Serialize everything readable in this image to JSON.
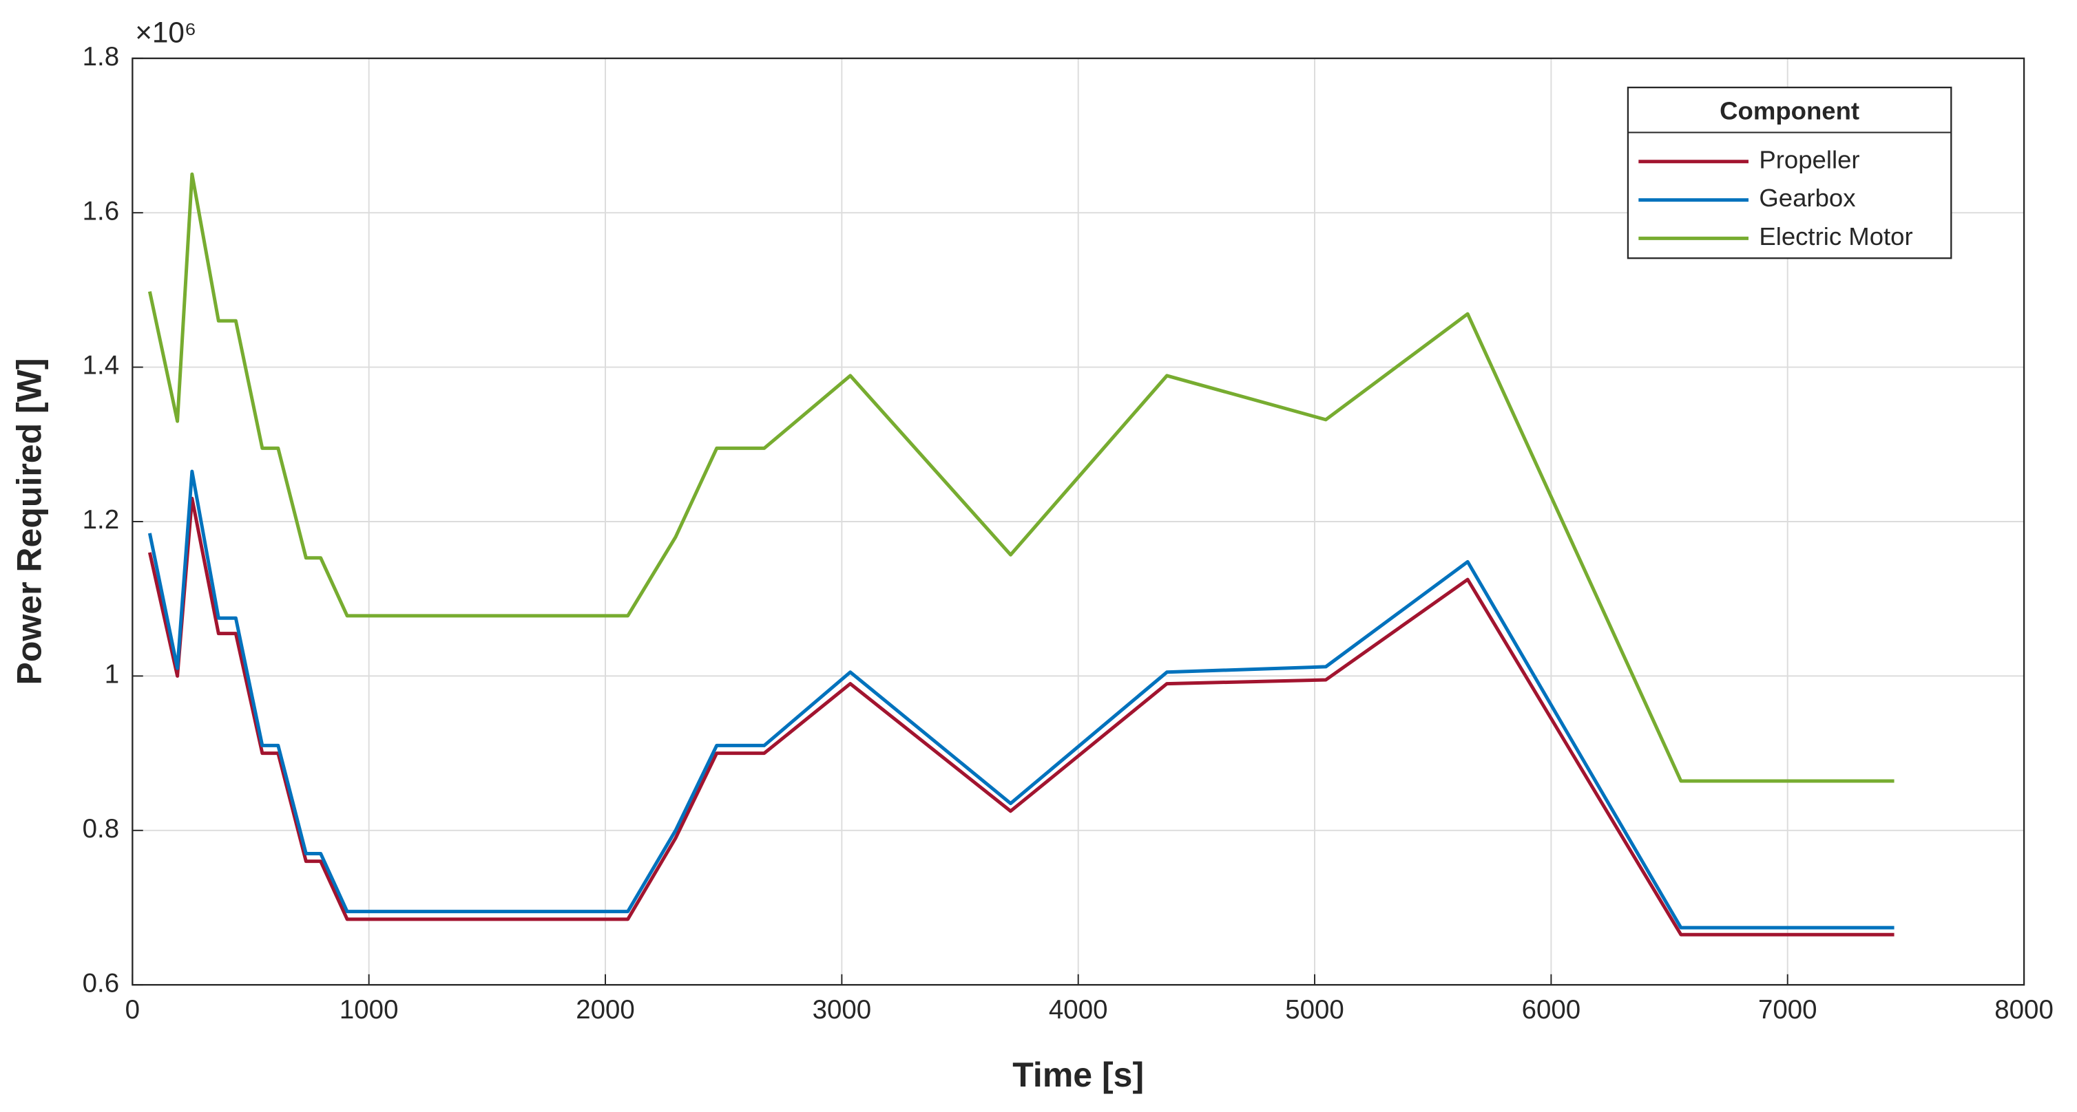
{
  "chart_data": {
    "type": "line",
    "xlabel": "Time [s]",
    "ylabel": "Power Required [W]",
    "y_exponent_label": "×10⁶",
    "x": [
      73,
      190,
      252,
      364,
      437,
      549,
      616,
      734,
      796,
      908,
      2095,
      2297,
      2471,
      2672,
      3036,
      3714,
      4375,
      5047,
      5647,
      6549,
      7451
    ],
    "series": [
      {
        "name": "Propeller",
        "color": "#a2142f",
        "values": [
          1.16,
          1.0,
          1.23,
          1.055,
          1.055,
          0.9,
          0.9,
          0.76,
          0.76,
          0.685,
          0.685,
          0.79,
          0.9,
          0.9,
          0.99,
          0.825,
          0.99,
          0.995,
          1.125,
          0.665,
          0.665
        ]
      },
      {
        "name": "Gearbox",
        "color": "#0072bd",
        "values": [
          1.185,
          1.01,
          1.265,
          1.075,
          1.075,
          0.91,
          0.91,
          0.77,
          0.77,
          0.695,
          0.695,
          0.8,
          0.91,
          0.91,
          1.005,
          0.835,
          1.005,
          1.012,
          1.148,
          0.674,
          0.674
        ]
      },
      {
        "name": "Electric Motor",
        "color": "#77ac30",
        "values": [
          1.498,
          1.33,
          1.65,
          1.46,
          1.46,
          1.295,
          1.295,
          1.153,
          1.153,
          1.078,
          1.078,
          1.18,
          1.295,
          1.295,
          1.389,
          1.157,
          1.389,
          1.332,
          1.469,
          0.864,
          0.864
        ]
      }
    ],
    "legend_title": "Component",
    "legend_position": "upper right",
    "xlim": [
      0,
      8000
    ],
    "xticks": [
      0,
      1000,
      2000,
      3000,
      4000,
      5000,
      6000,
      7000,
      8000
    ],
    "ylim": [
      0.6,
      1.8
    ],
    "yticks": [
      0.6,
      0.8,
      1,
      1.2,
      1.4,
      1.6,
      1.8
    ],
    "grid": true
  }
}
